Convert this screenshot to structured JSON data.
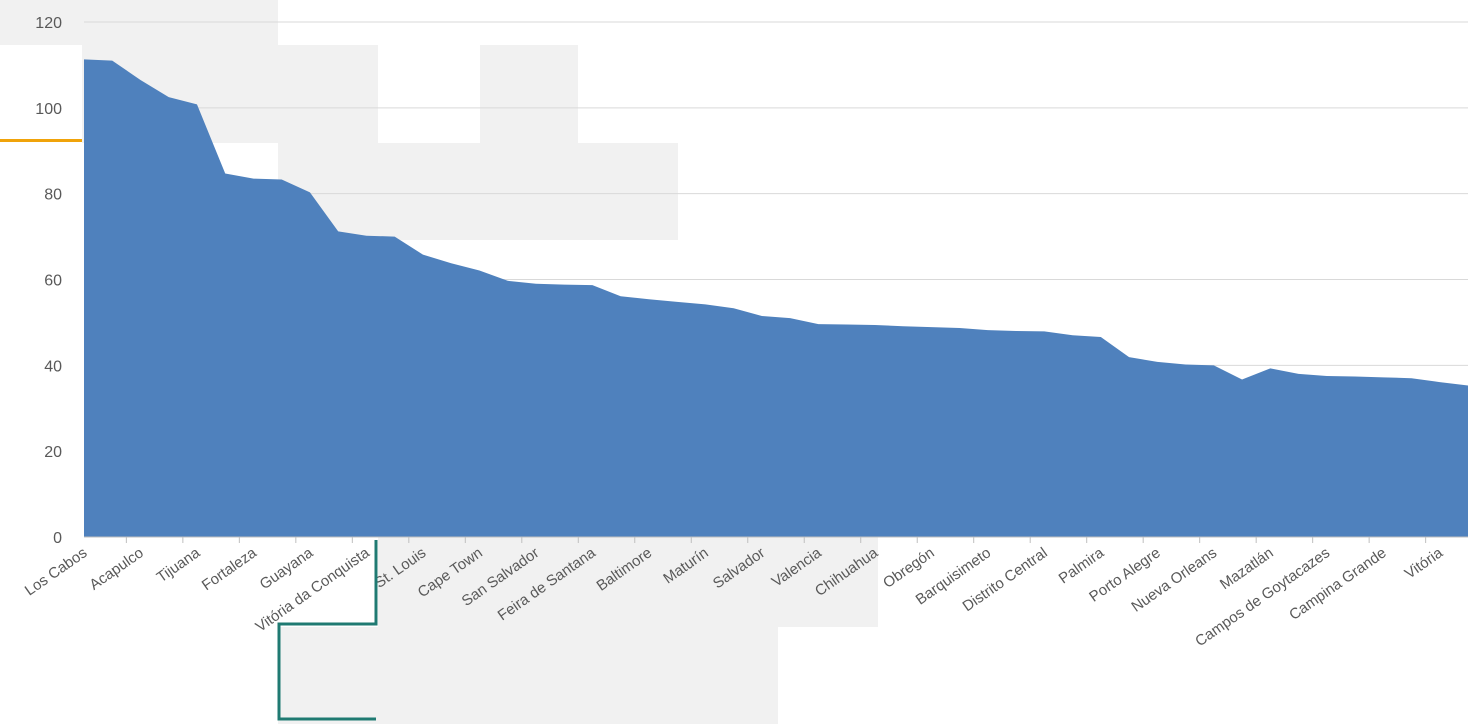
{
  "chart_data": {
    "type": "area",
    "title": "",
    "xlabel": "",
    "ylabel": "",
    "ylim": [
      0,
      120
    ],
    "y_ticks": [
      0,
      20,
      40,
      60,
      80,
      100,
      120
    ],
    "grid": true,
    "legend": "none",
    "color": "#4f81bd",
    "categories": [
      "Los Cabos",
      "",
      "Acapulco",
      "",
      "Tijuana",
      "",
      "Fortaleza",
      "",
      "Guayana",
      "",
      "Vitória da Conquista",
      "",
      "St. Louis",
      "",
      "Cape Town",
      "",
      "San Salvador",
      "",
      "Feira de Santana",
      "",
      "Baltimore",
      "",
      "Maturín",
      "",
      "Salvador",
      "",
      "Valencia",
      "",
      "Chihuahua",
      "",
      "Obregón",
      "",
      "Barquisimeto",
      "",
      "Distrito Central",
      "",
      "Palmira",
      "",
      "Porto Alegre",
      "",
      "Nueva Orleans",
      "",
      "Mazatlán",
      "",
      "Campos de Goytacazes",
      "",
      "Campina Grande",
      "",
      "Vitória",
      ""
    ],
    "values": [
      111.3,
      111,
      106.5,
      102.5,
      100.8,
      84.7,
      83.5,
      83.3,
      80.3,
      71.2,
      70.2,
      70,
      65.8,
      63.8,
      62.1,
      59.7,
      59,
      58.8,
      58.7,
      56.1,
      55.4,
      54.8,
      54.2,
      53.3,
      51.5,
      51.0,
      49.6,
      49.5,
      49.4,
      49.1,
      48.9,
      48.7,
      48.2,
      48.0,
      47.9,
      47.0,
      46.6,
      41.9,
      40.8,
      40.2,
      40.0,
      36.7,
      39.3,
      38.0,
      37.5,
      37.4,
      37.2,
      37.0,
      36.1,
      35.3
    ]
  }
}
